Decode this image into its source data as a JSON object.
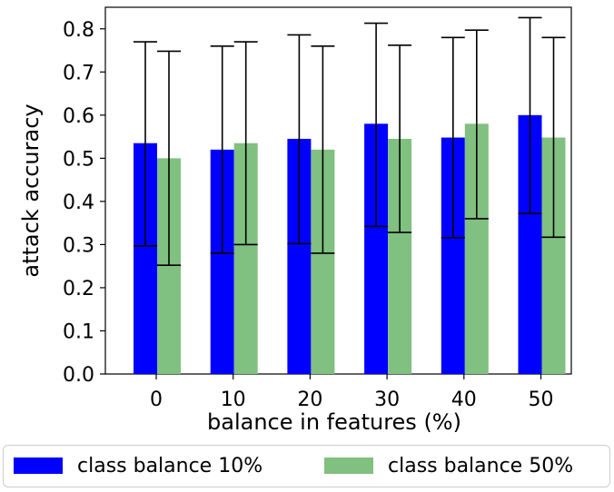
{
  "chart_data": {
    "type": "bar",
    "xlabel": "balance in features (%)",
    "ylabel": "attack accuracy",
    "categories": [
      "0",
      "10",
      "20",
      "30",
      "40",
      "50"
    ],
    "ylim": [
      0.0,
      0.85
    ],
    "yticks": [
      "0.0",
      "0.1",
      "0.2",
      "0.3",
      "0.4",
      "0.5",
      "0.6",
      "0.7",
      "0.8"
    ],
    "grid": false,
    "legend_position": "bottom",
    "error_bars": true,
    "series": [
      {
        "name": "class balance 10%",
        "color": "#0000ff",
        "values": [
          0.535,
          0.52,
          0.545,
          0.58,
          0.548,
          0.6
        ],
        "err_low": [
          0.297,
          0.28,
          0.302,
          0.342,
          0.316,
          0.372
        ],
        "err_high": [
          0.77,
          0.76,
          0.786,
          0.813,
          0.78,
          0.826
        ]
      },
      {
        "name": "class balance 50%",
        "color": "#80c080",
        "values": [
          0.5,
          0.535,
          0.52,
          0.545,
          0.58,
          0.548
        ],
        "err_low": [
          0.252,
          0.3,
          0.28,
          0.328,
          0.36,
          0.317
        ],
        "err_high": [
          0.748,
          0.77,
          0.76,
          0.762,
          0.797,
          0.78
        ]
      }
    ]
  }
}
